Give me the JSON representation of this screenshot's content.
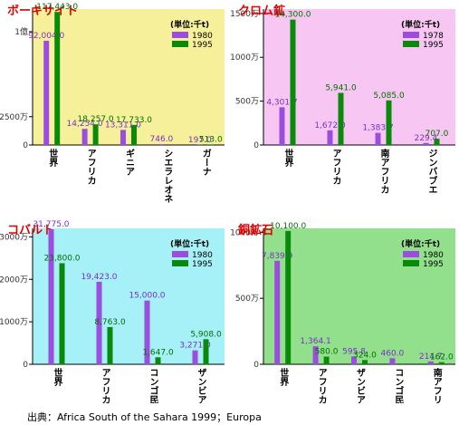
{
  "chart_data": [
    {
      "type": "bar",
      "title": "ボーキサイト",
      "unit_label": "(単位:千t)",
      "background": "#f7f09a",
      "legend": "upper right",
      "categories": [
        "世界",
        "アフリカ",
        "ギニア",
        "シエラレオネ",
        "ガーナ"
      ],
      "series": [
        {
          "name": "1980",
          "color": "#9b4de0",
          "values": [
            92004.0,
            14254.0,
            13311.0,
            746.0,
            197.0
          ],
          "value_labels": [
            "92,004.0",
            "14,254.0",
            "13,311.0",
            "746.0",
            "197.0"
          ]
        },
        {
          "name": "1995",
          "color": "#0a8a0a",
          "values": [
            117443.0,
            18257.0,
            17733.0,
            null,
            513.0
          ],
          "value_labels": [
            "117,443.0",
            "18,257.0",
            "17,733.0",
            null,
            "513.0"
          ]
        }
      ],
      "ylim": [
        0,
        120000
      ],
      "yticks": [
        0,
        {
          "value": 25000,
          "label": "2500万"
        },
        {
          "value": 100000,
          "label": "1億"
        }
      ]
    },
    {
      "type": "bar",
      "title": "クロム鉱",
      "unit_label": "(単位:千t)",
      "background": "#f7c6f2",
      "legend": "upper right",
      "categories": [
        "世界",
        "アフリカ",
        "南アフリカ",
        "ジンバブエ"
      ],
      "series": [
        {
          "name": "1978",
          "color": "#9b4de0",
          "values": [
            4301.7,
            1672.0,
            1383.7,
            229.4
          ],
          "value_labels": [
            "4,301.7",
            "1,672.0",
            "1,383.7",
            "229.4"
          ]
        },
        {
          "name": "1995",
          "color": "#0a8a0a",
          "values": [
            14300.0,
            5941.0,
            5085.0,
            707.0
          ],
          "value_labels": [
            "14,300.0",
            "5,941.0",
            "5,085.0",
            "707.0"
          ]
        }
      ],
      "ylim": [
        0,
        15500
      ],
      "yticks": [
        0,
        {
          "value": 5000,
          "label": "500万"
        },
        {
          "value": 10000,
          "label": "1000万"
        },
        {
          "value": 15000,
          "label": "1500万"
        }
      ]
    },
    {
      "type": "bar",
      "title": "コバルト",
      "unit_label": "(単位:千t)",
      "background": "#a6f0f7",
      "legend": "upper right",
      "categories": [
        "世界",
        "アフリカ",
        "コンゴ民主共和国",
        "ザンビア"
      ],
      "series": [
        {
          "name": "1980",
          "color": "#9b4de0",
          "values": [
            31775.0,
            19423.0,
            15000.0,
            3271.0
          ],
          "value_labels": [
            "31,775.0",
            "19,423.0",
            "15,000.0",
            "3,271.0"
          ]
        },
        {
          "name": "1995",
          "color": "#0a8a0a",
          "values": [
            23800.0,
            8763.0,
            1647.0,
            5908.0
          ],
          "value_labels": [
            "23,800.0",
            "8,763.0",
            "1,647.0",
            "5,908.0"
          ]
        }
      ],
      "ylim": [
        0,
        32000
      ],
      "yticks": [
        0,
        {
          "value": 10000,
          "label": "1000万"
        },
        {
          "value": 20000,
          "label": "2000万"
        },
        {
          "value": 30000,
          "label": "3000万"
        }
      ]
    },
    {
      "type": "bar",
      "title": "銅鉱石",
      "unit_label": "(単位:千t)",
      "background": "#92e08c",
      "legend": "upper right",
      "categories": [
        "世界",
        "アフリカ",
        "ザンビア",
        "コンゴ民主共和国",
        "南アフリカ"
      ],
      "series": [
        {
          "name": "1980",
          "color": "#9b4de0",
          "values": [
            7839.9,
            1364.1,
            595.8,
            460.0,
            214.7
          ],
          "value_labels": [
            "7,839.9",
            "1,364.1",
            "595.8",
            "460.0",
            "214.7"
          ]
        },
        {
          "name": "1995",
          "color": "#0a8a0a",
          "values": [
            10100.0,
            580.0,
            324.0,
            null,
            162.0
          ],
          "value_labels": [
            "10,100.0",
            "580.0",
            "324.0",
            null,
            "162.0"
          ]
        }
      ],
      "ylim": [
        0,
        10300
      ],
      "yticks": [
        0,
        {
          "value": 5000,
          "label": "500万"
        },
        {
          "value": 10000,
          "label": "1000万"
        }
      ]
    }
  ],
  "source": "出典：Africa South of the Sahara 1999；Europa"
}
